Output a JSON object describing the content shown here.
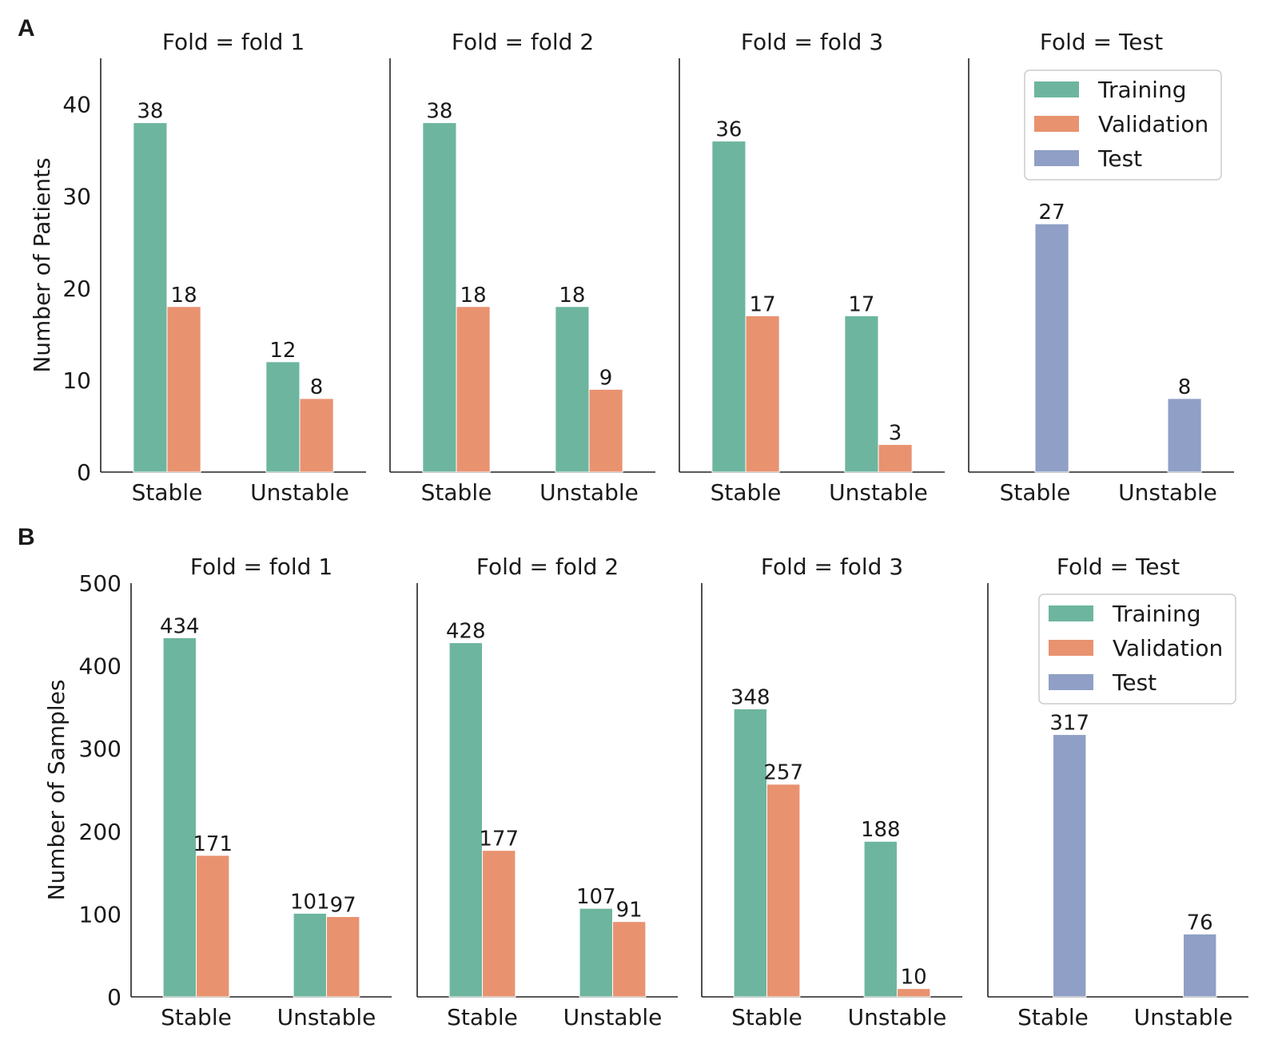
{
  "colors": {
    "training": "#6db59f",
    "validation": "#e99270",
    "test": "#8f9fc5",
    "axis": "#222222",
    "legend_border": "#cccccc"
  },
  "legend": [
    "Training",
    "Validation",
    "Test"
  ],
  "chart_data": [
    {
      "type": "bar",
      "panel": "A",
      "ylabel": "Number of Patients",
      "ylim": [
        0,
        45
      ],
      "yticks": [
        0,
        10,
        20,
        30,
        40
      ],
      "categories": [
        "Stable",
        "Unstable"
      ],
      "facets": [
        {
          "title": "Fold = fold 1",
          "series": [
            {
              "name": "Training",
              "values": [
                38,
                12
              ]
            },
            {
              "name": "Validation",
              "values": [
                18,
                8
              ]
            }
          ]
        },
        {
          "title": "Fold = fold 2",
          "series": [
            {
              "name": "Training",
              "values": [
                38,
                18
              ]
            },
            {
              "name": "Validation",
              "values": [
                18,
                9
              ]
            }
          ]
        },
        {
          "title": "Fold = fold 3",
          "series": [
            {
              "name": "Training",
              "values": [
                36,
                17
              ]
            },
            {
              "name": "Validation",
              "values": [
                17,
                3
              ]
            }
          ]
        },
        {
          "title": "Fold = Test",
          "series": [
            {
              "name": "Test",
              "values": [
                27,
                8
              ]
            }
          ]
        }
      ]
    },
    {
      "type": "bar",
      "panel": "B",
      "ylabel": "Number of Samples",
      "ylim": [
        0,
        500
      ],
      "yticks": [
        0,
        100,
        200,
        300,
        400,
        500
      ],
      "categories": [
        "Stable",
        "Unstable"
      ],
      "facets": [
        {
          "title": "Fold = fold 1",
          "series": [
            {
              "name": "Training",
              "values": [
                434,
                101
              ]
            },
            {
              "name": "Validation",
              "values": [
                171,
                97
              ]
            }
          ]
        },
        {
          "title": "Fold = fold 2",
          "series": [
            {
              "name": "Training",
              "values": [
                428,
                107
              ]
            },
            {
              "name": "Validation",
              "values": [
                177,
                91
              ]
            }
          ]
        },
        {
          "title": "Fold = fold 3",
          "series": [
            {
              "name": "Training",
              "values": [
                348,
                188
              ]
            },
            {
              "name": "Validation",
              "values": [
                257,
                10
              ]
            }
          ]
        },
        {
          "title": "Fold = Test",
          "series": [
            {
              "name": "Test",
              "values": [
                317,
                76
              ]
            }
          ]
        }
      ]
    }
  ]
}
